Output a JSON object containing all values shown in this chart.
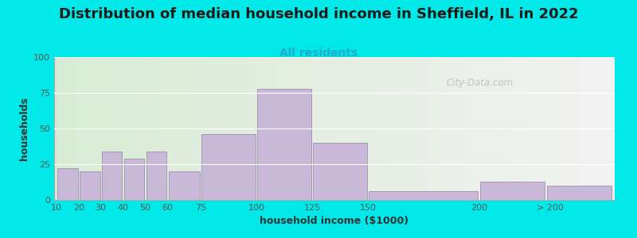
{
  "title": "Distribution of median household income in Sheffield, IL in 2022",
  "subtitle": "All residents",
  "xlabel": "household income ($1000)",
  "ylabel": "households",
  "bar_heights": [
    22,
    20,
    34,
    29,
    34,
    20,
    46,
    78,
    40,
    6,
    13,
    10
  ],
  "bar_color": "#c9b8d8",
  "bar_edgecolor": "#9e8fb0",
  "ylim": [
    0,
    100
  ],
  "yticks": [
    0,
    25,
    50,
    75,
    100
  ],
  "background_outer": "#00e8e8",
  "background_inner_left": "#d8ecd4",
  "background_inner_right": "#f2f2f2",
  "title_fontsize": 13,
  "subtitle_fontsize": 10,
  "subtitle_color": "#22aacc",
  "axis_label_fontsize": 9,
  "tick_fontsize": 8,
  "watermark_text": "City-Data.com",
  "watermark_color": "#bbbbbb",
  "bar_lefts": [
    10,
    20,
    30,
    40,
    50,
    60,
    75,
    100,
    125,
    150,
    200,
    230
  ],
  "bar_widths": [
    10,
    10,
    10,
    10,
    10,
    15,
    25,
    25,
    25,
    50,
    30,
    30
  ],
  "tick_positions": [
    10,
    20,
    30,
    40,
    50,
    60,
    75,
    100,
    125,
    150,
    200,
    232
  ],
  "tick_labels": [
    "10",
    "20",
    "30",
    "40",
    "50",
    "60",
    "75",
    "100",
    "125",
    "150",
    "200",
    "> 200"
  ]
}
